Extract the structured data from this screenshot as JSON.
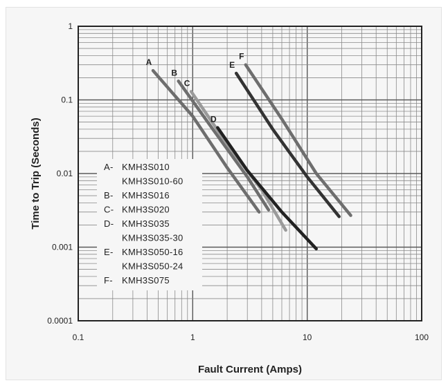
{
  "chart_data": {
    "type": "line",
    "xlabel": "Fault Current (Amps)",
    "ylabel": "Time to Trip (Seconds)",
    "xscale": "log",
    "yscale": "log",
    "xlim": [
      0.1,
      100
    ],
    "ylim": [
      0.0001,
      1
    ],
    "x_tick_labels": [
      "0.1",
      "1",
      "10",
      "100"
    ],
    "y_tick_labels": [
      "1",
      "0.1",
      "0.01",
      "0.001",
      "0.0001"
    ],
    "grid": true,
    "legend_position": "center-left",
    "legend_entries": [
      {
        "key": "A-",
        "text": "KMH3S010"
      },
      {
        "key": "",
        "text": "KMH3S010-60"
      },
      {
        "key": "B-",
        "text": "KMH3S016"
      },
      {
        "key": "C-",
        "text": "KMH3S020"
      },
      {
        "key": "D-",
        "text": "KMH3S035"
      },
      {
        "key": "",
        "text": "KMH3S035-30"
      },
      {
        "key": "E-",
        "text": "KMH3S050-16"
      },
      {
        "key": "",
        "text": "KMH3S050-24"
      },
      {
        "key": "F-",
        "text": "KMH3S075"
      }
    ],
    "series": [
      {
        "label": "A",
        "color": "#6e6e6e",
        "x": [
          0.45,
          1.0,
          2.0,
          3.0,
          3.8
        ],
        "y": [
          0.25,
          0.06,
          0.012,
          0.005,
          0.003
        ]
      },
      {
        "label": "B",
        "color": "#6e6e6e",
        "x": [
          0.75,
          1.5,
          3.0,
          4.6
        ],
        "y": [
          0.18,
          0.04,
          0.009,
          0.0032
        ]
      },
      {
        "label": "C",
        "color": "#9a9a9a",
        "x": [
          0.97,
          2.0,
          4.0,
          6.5
        ],
        "y": [
          0.13,
          0.025,
          0.006,
          0.0017
        ]
      },
      {
        "label": "D",
        "color": "#222222",
        "x": [
          1.65,
          3.0,
          6.0,
          12.0
        ],
        "y": [
          0.042,
          0.011,
          0.003,
          0.00095
        ]
      },
      {
        "label": "E",
        "color": "#333333",
        "x": [
          2.4,
          5.0,
          10.0,
          19.0
        ],
        "y": [
          0.23,
          0.04,
          0.009,
          0.0026
        ]
      },
      {
        "label": "F",
        "color": "#6e6e6e",
        "x": [
          2.9,
          6.0,
          12.0,
          24.0
        ],
        "y": [
          0.3,
          0.055,
          0.01,
          0.0027
        ]
      }
    ]
  }
}
